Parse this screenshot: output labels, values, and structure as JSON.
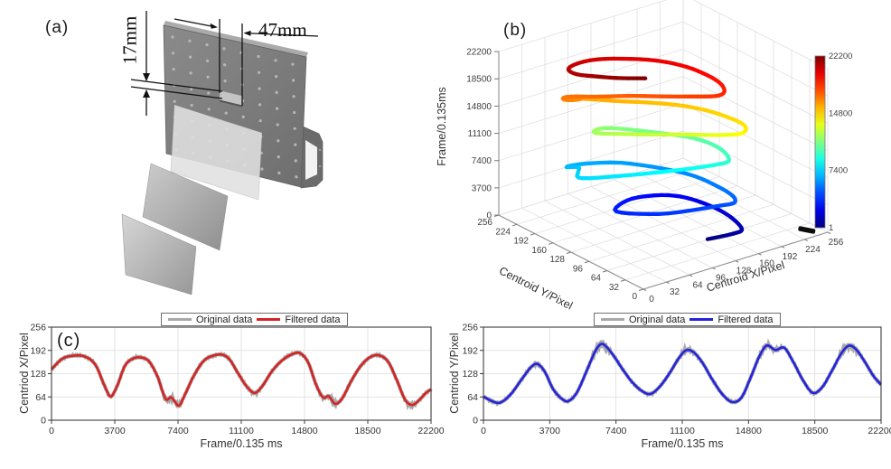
{
  "figure": {
    "background": "#ffffff"
  },
  "panels": {
    "a": {
      "label": "(a)",
      "dim_vertical": "17mm",
      "dim_horizontal": "47mm"
    },
    "b": {
      "label": "(b)"
    },
    "c": {
      "label": "(c)"
    }
  },
  "style": {
    "axis_color": "#3c3c3c",
    "grid_color": "#dcdcdc",
    "tick_label_color": "#333333"
  },
  "chart_data": [
    {
      "id": "trajectory-3d",
      "panel": "b",
      "type": "line",
      "projection": "3d",
      "xlabel": "Centroid X/Pixel",
      "ylabel": "Centroid Y/Pixel",
      "zlabel": "Frame/0.135ms",
      "xlim": [
        0,
        256
      ],
      "ylim": [
        0,
        256
      ],
      "zlim": [
        0,
        22200
      ],
      "x_ticks": [
        0,
        32,
        64,
        96,
        128,
        160,
        192,
        224,
        256
      ],
      "y_ticks": [
        0,
        32,
        64,
        96,
        128,
        160,
        192,
        224,
        256
      ],
      "z_ticks": [
        0,
        3700,
        7400,
        11100,
        14800,
        18500,
        22200
      ],
      "grid": true,
      "colormap": "jet",
      "colorbar_ticks": [
        1,
        7400,
        14800,
        22200
      ],
      "series_source": "x: centroid-x filtered, y: centroid-y filtered, z and color: frame index"
    },
    {
      "id": "centroid-x",
      "panel": "c-left",
      "type": "line",
      "xlabel": "Frame/0.135 ms",
      "ylabel": "Centriod X/Pixel",
      "xlim": [
        0,
        22200
      ],
      "ylim": [
        0,
        256
      ],
      "x_ticks": [
        0,
        3700,
        7400,
        11100,
        14800,
        18500,
        22200
      ],
      "y_ticks": [
        0,
        64,
        128,
        192,
        256
      ],
      "grid": true,
      "legend": [
        "Original data",
        "Filtered data"
      ],
      "legend_position": "top-center",
      "original_color": "#a8a8a8",
      "filtered_color": "#d42424",
      "keypoints": {
        "frame": [
          0,
          600,
          1200,
          2000,
          2600,
          3100,
          3450,
          3800,
          4300,
          4800,
          5300,
          5700,
          6200,
          6700,
          7000,
          7200,
          7450,
          7800,
          8300,
          8900,
          9500,
          10000,
          10400,
          10900,
          11500,
          11900,
          12300,
          12900,
          13500,
          14100,
          14500,
          15000,
          15500,
          15900,
          16200,
          16600,
          17000,
          17500,
          18100,
          18700,
          19200,
          19700,
          20200,
          20700,
          21100,
          21500,
          21900,
          22200
        ],
        "value": [
          140,
          168,
          177,
          174,
          150,
          95,
          65,
          90,
          150,
          170,
          172,
          162,
          120,
          57,
          63,
          52,
          40,
          70,
          120,
          163,
          178,
          180,
          168,
          130,
          88,
          75,
          92,
          135,
          165,
          182,
          185,
          160,
          95,
          62,
          66,
          45,
          60,
          105,
          150,
          175,
          178,
          160,
          110,
          55,
          42,
          55,
          75,
          85
        ]
      },
      "note": "Original data equals filtered curve plus small measurement noise"
    },
    {
      "id": "centroid-y",
      "panel": "c-right",
      "type": "line",
      "xlabel": "Frame/0.135 ms",
      "ylabel": "Centriod Y/Pixel",
      "xlim": [
        0,
        22200
      ],
      "ylim": [
        0,
        256
      ],
      "x_ticks": [
        0,
        3700,
        7400,
        11100,
        14800,
        18500,
        22200
      ],
      "y_ticks": [
        0,
        64,
        128,
        192,
        256
      ],
      "grid": true,
      "legend": [
        "Original data",
        "Filtered data"
      ],
      "legend_position": "top-center",
      "original_color": "#a8a8a8",
      "filtered_color": "#2424dd",
      "keypoints": {
        "frame": [
          0,
          500,
          900,
          1500,
          2100,
          2700,
          3000,
          3400,
          3900,
          4400,
          4700,
          5200,
          5800,
          6300,
          6600,
          6900,
          7300,
          7800,
          8300,
          8800,
          9300,
          9800,
          10400,
          10900,
          11300,
          11700,
          12200,
          12800,
          13400,
          13900,
          14400,
          14900,
          15400,
          15800,
          16300,
          16800,
          17300,
          17900,
          18400,
          18900,
          19500,
          20000,
          20400,
          20800,
          21300,
          21800,
          22200
        ],
        "value": [
          65,
          52,
          48,
          70,
          110,
          148,
          155,
          135,
          85,
          58,
          52,
          75,
          140,
          195,
          210,
          200,
          175,
          138,
          105,
          82,
          72,
          90,
          130,
          170,
          192,
          188,
          160,
          110,
          68,
          50,
          62,
          115,
          175,
          205,
          193,
          199,
          160,
          105,
          75,
          90,
          140,
          185,
          205,
          195,
          160,
          120,
          98
        ]
      },
      "note": "Original data equals filtered curve plus small measurement noise"
    }
  ]
}
